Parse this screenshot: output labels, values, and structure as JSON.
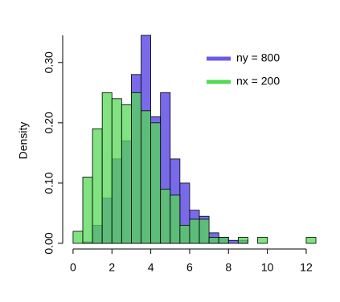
{
  "chart_data": {
    "type": "histogram",
    "y_label": "Density",
    "bins": [
      0,
      0.5,
      1,
      1.5,
      2,
      2.5,
      3,
      3.5,
      4,
      4.5,
      5,
      5.5,
      6,
      6.5,
      7,
      7.5,
      8,
      8.5,
      9,
      9.5,
      10,
      10.5,
      11,
      11.5,
      12,
      12.5
    ],
    "series": [
      {
        "name": "ny = 800",
        "color": "#6a5ae8",
        "values": [
          0,
          0.0025,
          0.03,
          0.075,
          0.14,
          0.17,
          0.28,
          0.345,
          0.21,
          0.25,
          0.14,
          0.1,
          0.055,
          0.045,
          0.0175,
          0.01,
          0.005,
          0.005,
          0,
          0,
          0,
          0,
          0,
          0,
          0
        ]
      },
      {
        "name": "nx = 200",
        "color": "#55d855",
        "values": [
          0.02,
          0.11,
          0.19,
          0.25,
          0.24,
          0.23,
          0.25,
          0.22,
          0.2,
          0.09,
          0.08,
          0.03,
          0.04,
          0.04,
          0.01,
          0.01,
          0,
          0.01,
          0,
          0.01,
          0,
          0,
          0,
          0,
          0.01
        ]
      }
    ],
    "xlim": [
      -0.41,
      12.54
    ],
    "ylim": [
      0,
      0.345
    ],
    "xticks": [
      0,
      2,
      4,
      6,
      8,
      10,
      12
    ],
    "yticks": [
      {
        "value": 0,
        "label": "0.00"
      },
      {
        "value": 0.1,
        "label": "0.10"
      },
      {
        "value": 0.2,
        "label": "0.20"
      },
      {
        "value": 0.3,
        "label": "0.30"
      }
    ],
    "legend": "top-right"
  }
}
